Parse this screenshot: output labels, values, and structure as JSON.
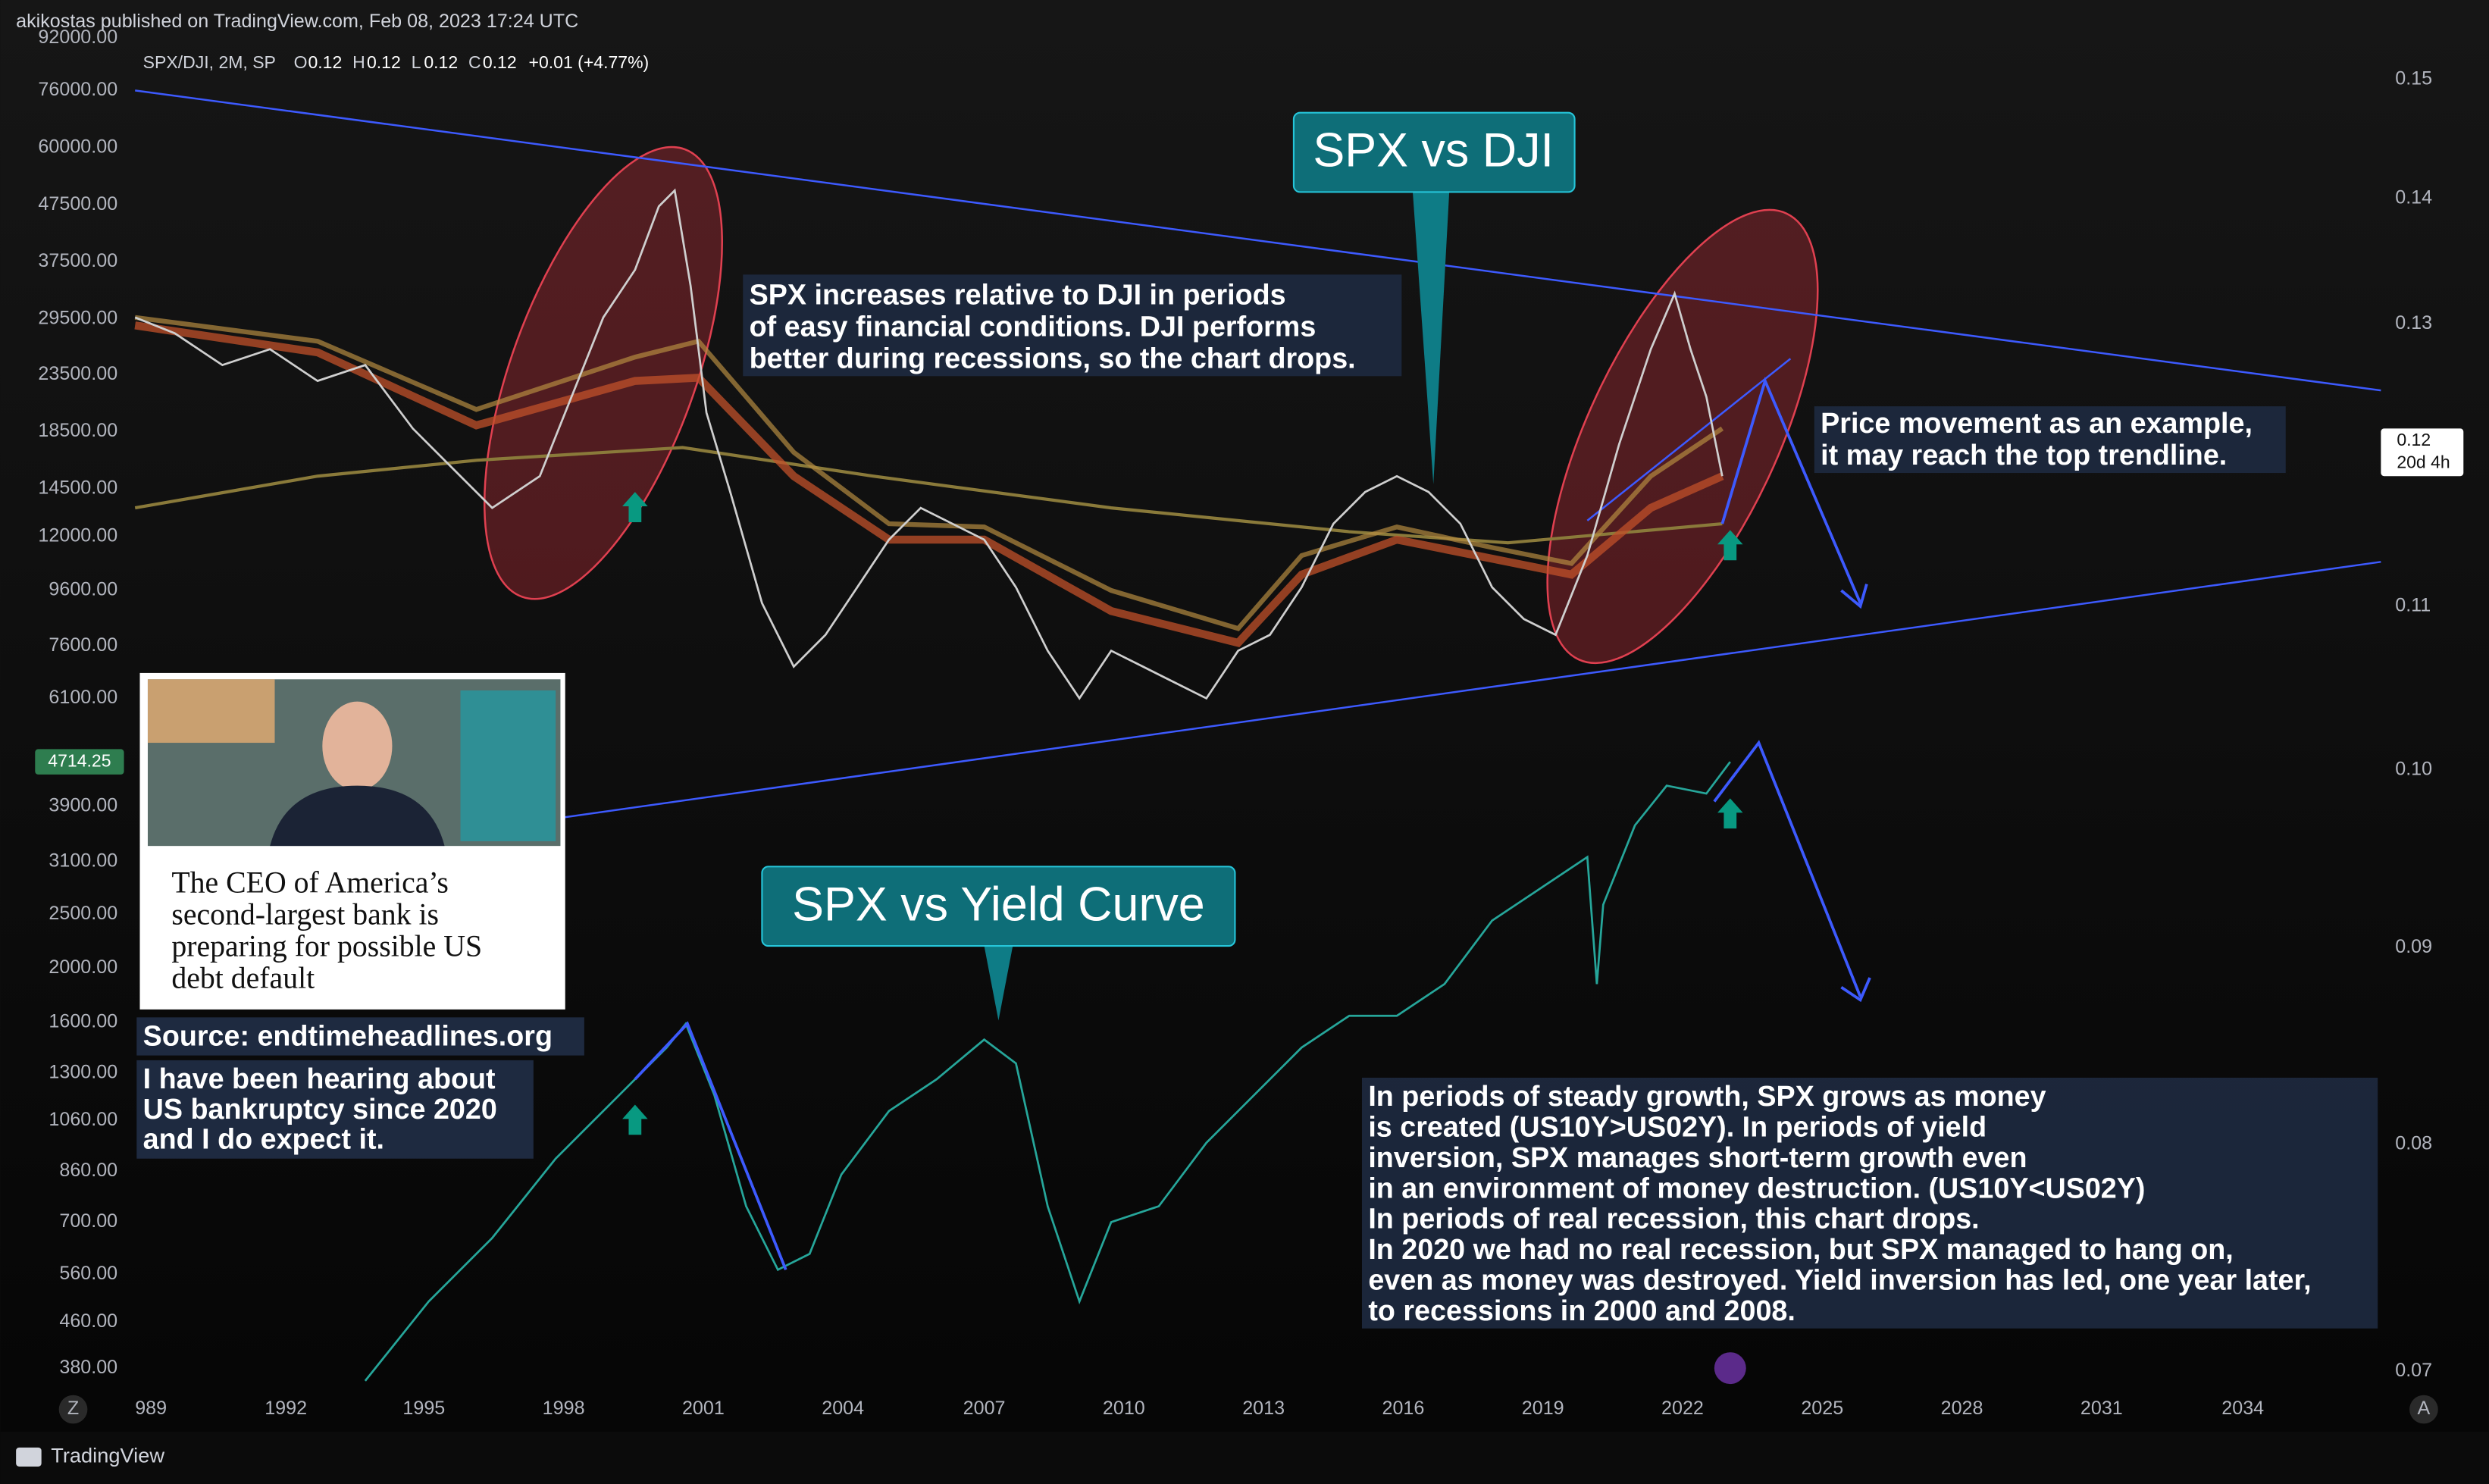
{
  "header": {
    "publisher": "akikostas published on TradingView.com, Feb 08, 2023 17:24 UTC"
  },
  "legend": {
    "symbol": "SPX/DJI, 2M, SP",
    "o_label": "O",
    "o": "0.12",
    "h_label": "H",
    "h": "0.12",
    "l_label": "L",
    "l": "0.12",
    "c_label": "C",
    "c": "0.12",
    "change": "+0.01 (+4.77%)"
  },
  "left_axis": [
    "92000.00",
    "76000.00",
    "60000.00",
    "47500.00",
    "37500.00",
    "29500.00",
    "23500.00",
    "18500.00",
    "14500.00",
    "12000.00",
    "9600.00",
    "7600.00",
    "6100.00",
    "3900.00",
    "3100.00",
    "2500.00",
    "2000.00",
    "1600.00",
    "1300.00",
    "1060.00",
    "860.00",
    "700.00",
    "560.00",
    "460.00",
    "380.00"
  ],
  "left_badge": "4714.25",
  "right_axis": [
    "0.15",
    "0.14",
    "0.13",
    "0.11",
    "0.10",
    "0.09",
    "0.08",
    "0.07"
  ],
  "right_badge": {
    "price": "0.12",
    "countdown": "20d 4h"
  },
  "time_axis": [
    "989",
    "1992",
    "1995",
    "1998",
    "2001",
    "2004",
    "2007",
    "2010",
    "2013",
    "2016",
    "2019",
    "2022",
    "2025",
    "2028",
    "2031",
    "2034"
  ],
  "callouts": [
    "SPX vs DJI",
    "SPX vs Yield Curve"
  ],
  "notes": [
    {
      "lines": [
        "SPX increases relative to DJI in periods",
        "of easy financial conditions. DJI performs",
        "better during recessions, so the chart drops."
      ]
    },
    {
      "lines": [
        "Price movement as an example,",
        "it may reach the top trendline."
      ]
    },
    {
      "lines": [
        "In periods of steady growth, SPX grows as money",
        "is created (US10Y>US02Y). In periods of yield",
        "inversion, SPX manages short-term growth even",
        "in an environment of money destruction. (US10Y<US02Y)",
        "In periods of real recession, this chart drops.",
        "In 2020 we had no real recession, but SPX managed to hang on,",
        "even as money was destroyed. Yield inversion has led, one year later,",
        "to recessions in 2000 and 2008."
      ]
    },
    {
      "lines": [
        "I have been hearing about",
        "US bankruptcy since 2020",
        "and I do expect it."
      ]
    }
  ],
  "news": {
    "headline": [
      "The CEO of America’s",
      "second-largest bank is",
      "preparing for possible US",
      "debt default"
    ],
    "source": "Source: endtimeheadlines.org"
  },
  "buttons": {
    "left": "Z",
    "right": "A"
  },
  "footer": {
    "brand": "TradingView"
  }
}
